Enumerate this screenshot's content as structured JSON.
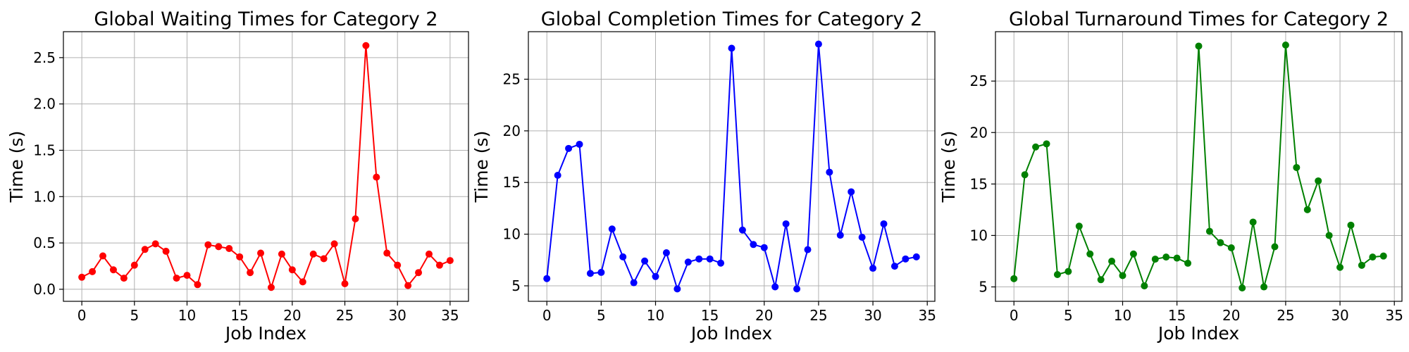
{
  "chart_data": [
    {
      "type": "line",
      "title": "Global Waiting Times for Category 2",
      "xlabel": "Job Index",
      "ylabel": "Time (s)",
      "color": "#ff0000",
      "marker": "circle",
      "grid": true,
      "xlim": [
        -1.75,
        36.75
      ],
      "ylim": [
        -0.13,
        2.78
      ],
      "xticks": [
        0,
        5,
        10,
        15,
        20,
        25,
        30,
        35
      ],
      "yticks": [
        0.0,
        0.5,
        1.0,
        1.5,
        2.0,
        2.5
      ],
      "ytick_labels": [
        "0.0",
        "0.5",
        "1.0",
        "1.5",
        "2.0",
        "2.5"
      ],
      "x": [
        0,
        1,
        2,
        3,
        4,
        5,
        6,
        7,
        8,
        9,
        10,
        11,
        12,
        13,
        14,
        15,
        16,
        17,
        18,
        19,
        20,
        21,
        22,
        23,
        24,
        25,
        26,
        27,
        28,
        29,
        30,
        31,
        32,
        33,
        34,
        35
      ],
      "y": [
        0.13,
        0.19,
        0.36,
        0.21,
        0.12,
        0.26,
        0.43,
        0.49,
        0.41,
        0.12,
        0.15,
        0.05,
        0.48,
        0.46,
        0.44,
        0.35,
        0.18,
        0.39,
        0.02,
        0.38,
        0.21,
        0.08,
        0.38,
        0.33,
        0.49,
        0.06,
        0.76,
        2.63,
        1.21,
        0.39,
        0.26,
        0.04,
        0.18,
        0.38,
        0.26,
        0.31
      ]
    },
    {
      "type": "line",
      "title": "Global Completion Times for Category 2",
      "xlabel": "Job Index",
      "ylabel": "Time (s)",
      "color": "#0000ff",
      "marker": "circle",
      "grid": true,
      "xlim": [
        -1.7,
        35.7
      ],
      "ylim": [
        3.5,
        29.6
      ],
      "xticks": [
        0,
        5,
        10,
        15,
        20,
        25,
        30,
        35
      ],
      "yticks": [
        5,
        10,
        15,
        20,
        25
      ],
      "ytick_labels": [
        "5",
        "10",
        "15",
        "20",
        "25"
      ],
      "x": [
        0,
        1,
        2,
        3,
        4,
        5,
        6,
        7,
        8,
        9,
        10,
        11,
        12,
        13,
        14,
        15,
        16,
        17,
        18,
        19,
        20,
        21,
        22,
        23,
        24,
        25,
        26,
        27,
        28,
        29,
        30,
        31,
        32,
        33,
        34
      ],
      "y": [
        5.7,
        15.7,
        18.3,
        18.7,
        6.2,
        6.3,
        10.5,
        7.8,
        5.3,
        7.4,
        5.9,
        8.2,
        4.7,
        7.3,
        7.6,
        7.6,
        7.2,
        28.0,
        10.4,
        9.0,
        8.7,
        4.9,
        11.0,
        4.7,
        8.5,
        28.4,
        16.0,
        9.9,
        14.1,
        9.7,
        6.7,
        11.0,
        6.9,
        7.6,
        7.8
      ]
    },
    {
      "type": "line",
      "title": "Global Turnaround Times for Category 2",
      "xlabel": "Job Index",
      "ylabel": "Time (s)",
      "color": "#008000",
      "marker": "circle",
      "grid": true,
      "xlim": [
        -1.7,
        35.7
      ],
      "ylim": [
        3.6,
        29.8
      ],
      "xticks": [
        0,
        5,
        10,
        15,
        20,
        25,
        30,
        35
      ],
      "yticks": [
        5,
        10,
        15,
        20,
        25
      ],
      "ytick_labels": [
        "5",
        "10",
        "15",
        "20",
        "25"
      ],
      "x": [
        0,
        1,
        2,
        3,
        4,
        5,
        6,
        7,
        8,
        9,
        10,
        11,
        12,
        13,
        14,
        15,
        16,
        17,
        18,
        19,
        20,
        21,
        22,
        23,
        24,
        25,
        26,
        27,
        28,
        29,
        30,
        31,
        32,
        33,
        34
      ],
      "y": [
        5.8,
        15.9,
        18.6,
        18.9,
        6.2,
        6.5,
        10.9,
        8.2,
        5.7,
        7.5,
        6.1,
        8.2,
        5.1,
        7.7,
        7.9,
        7.8,
        7.3,
        28.4,
        10.4,
        9.3,
        8.8,
        4.9,
        11.3,
        5.0,
        8.9,
        28.5,
        16.6,
        12.5,
        15.3,
        10.0,
        6.9,
        11.0,
        7.1,
        7.9,
        8.0
      ]
    }
  ]
}
